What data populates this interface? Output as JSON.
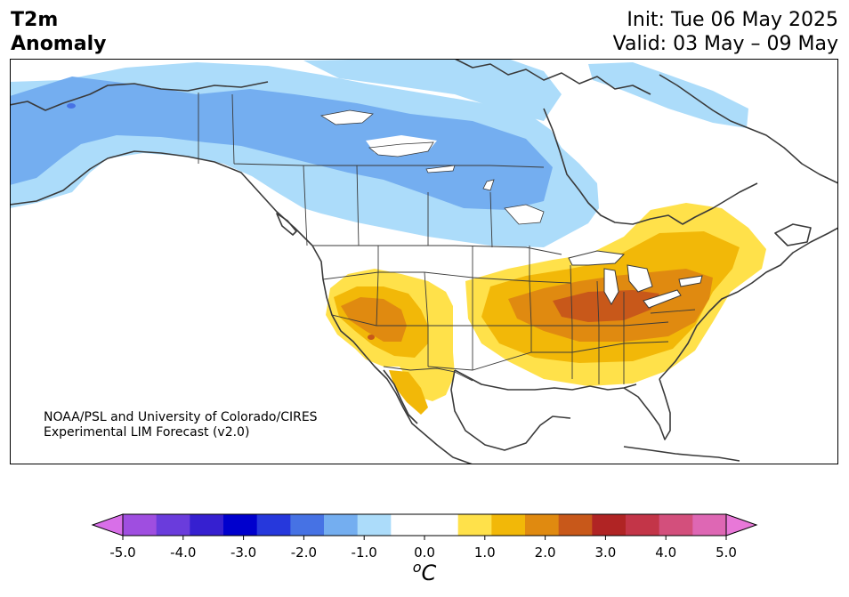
{
  "header": {
    "variable_line1": "T2m",
    "variable_line2": "Anomaly",
    "init": "Init: Tue 06 May 2025",
    "valid": "Valid: 03 May – 09 May"
  },
  "credit": {
    "line1": "NOAA/PSL and University of Colorado/CIRES",
    "line2": "Experimental LIM Forecast (v2.0)"
  },
  "colorbar": {
    "tick_labels": [
      "-5.0",
      "-4.0",
      "-3.0",
      "-2.0",
      "-1.0",
      "0.0",
      "1.0",
      "2.0",
      "3.0",
      "4.0",
      "5.0"
    ],
    "unit_base": "C",
    "unit_sup": "o",
    "colors": [
      "#d86fe8",
      "#9f4ee0",
      "#6a3cdc",
      "#3620d0",
      "#0000cd",
      "#2638dc",
      "#4672e4",
      "#74aef0",
      "#acdcfa",
      "#ffffff",
      "#ffffff",
      "#ffe14a",
      "#f2b808",
      "#e08a10",
      "#c8581a",
      "#b02424",
      "#c33548",
      "#d34f7c",
      "#de67b4",
      "#e878d8"
    ]
  },
  "palette": {
    "ocean": "#ffffff",
    "neutral_land": "#ffffff",
    "cold1": "#acdcfa",
    "cold2": "#74aef0",
    "cold3": "#4672e4",
    "warm1": "#ffe14a",
    "warm2": "#f2b808",
    "warm3": "#e08a10",
    "warm4": "#c8581a",
    "coast": "#3a3a3a"
  }
}
